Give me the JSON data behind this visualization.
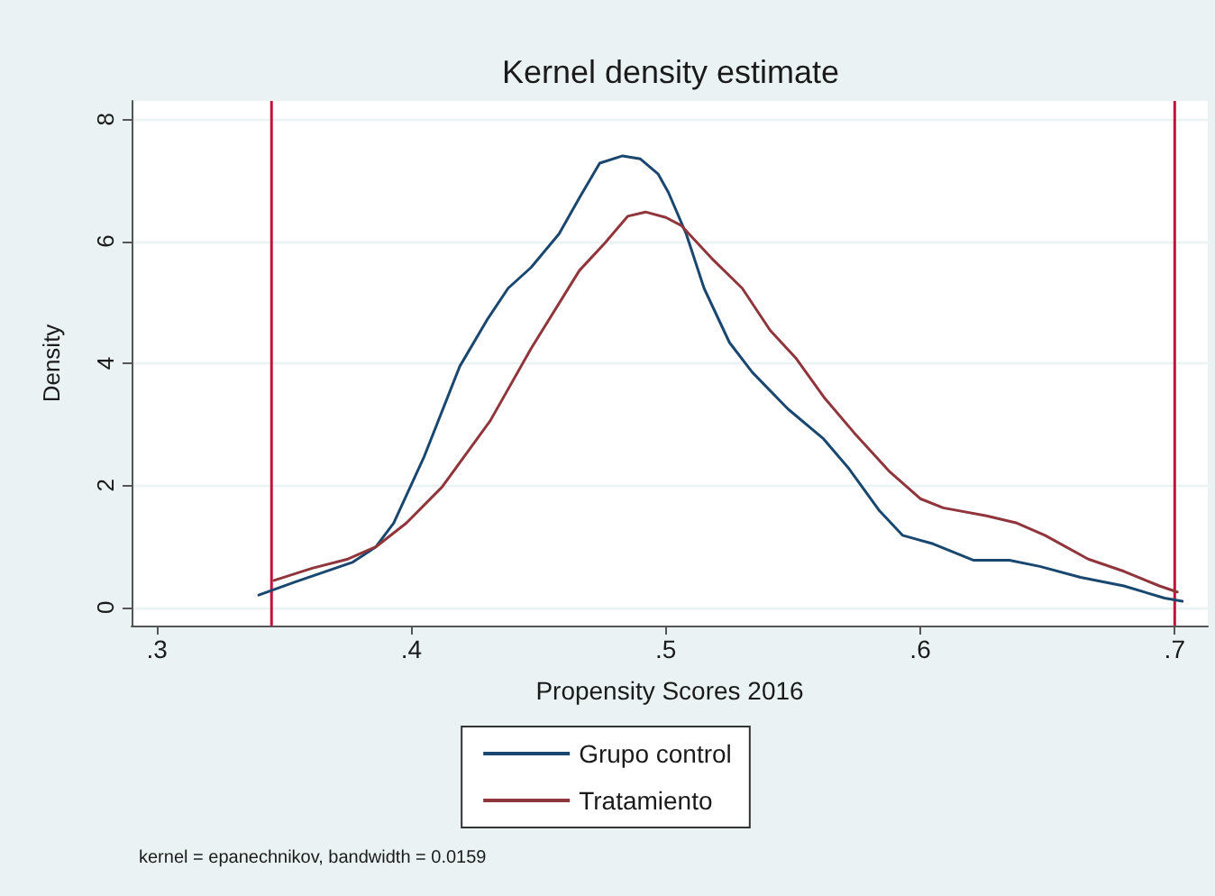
{
  "chart_data": {
    "type": "line",
    "title": "Kernel density estimate",
    "xlabel": "Propensity Scores 2016",
    "ylabel": "Density",
    "annotations": [
      "kernel = epanechnikov, bandwidth = 0.0159"
    ],
    "xlim": [
      0.29,
      0.713
    ],
    "xticks": [
      {
        "value": 0.3,
        "label": ".3"
      },
      {
        "value": 0.4,
        "label": ".4"
      },
      {
        "value": 0.5,
        "label": ".5"
      },
      {
        "value": 0.6,
        "label": ".6"
      },
      {
        "value": 0.7,
        "label": ".7"
      }
    ],
    "ylim": [
      -0.3,
      8.3
    ],
    "yticks": [
      0,
      2,
      4,
      6,
      8
    ],
    "grid": "y",
    "legend": "bottom",
    "ref_lines": [
      {
        "axis": "x",
        "value": 0.345,
        "color": "#c0143c"
      },
      {
        "axis": "x",
        "value": 0.7,
        "color": "#c0143c"
      }
    ],
    "series": [
      {
        "name": "Grupo control",
        "color": "#1a476f",
        "x": [
          0.34,
          0.354,
          0.377,
          0.386,
          0.393,
          0.405,
          0.419,
          0.43,
          0.438,
          0.447,
          0.458,
          0.466,
          0.474,
          0.483,
          0.49,
          0.497,
          0.501,
          0.508,
          0.515,
          0.525,
          0.534,
          0.548,
          0.562,
          0.572,
          0.584,
          0.593,
          0.605,
          0.621,
          0.635,
          0.647,
          0.663,
          0.68,
          0.696,
          0.703
        ],
        "values": [
          0.2,
          0.41,
          0.74,
          0.99,
          1.38,
          2.47,
          3.95,
          4.73,
          5.23,
          5.57,
          6.12,
          6.71,
          7.28,
          7.4,
          7.35,
          7.1,
          6.8,
          6.12,
          5.23,
          4.34,
          3.85,
          3.25,
          2.76,
          2.27,
          1.58,
          1.18,
          1.04,
          0.77,
          0.77,
          0.67,
          0.49,
          0.35,
          0.15,
          0.1
        ]
      },
      {
        "name": "Tratamiento",
        "color": "#90353b",
        "x": [
          0.346,
          0.361,
          0.375,
          0.386,
          0.398,
          0.412,
          0.431,
          0.447,
          0.466,
          0.476,
          0.485,
          0.492,
          0.5,
          0.506,
          0.518,
          0.53,
          0.541,
          0.551,
          0.562,
          0.574,
          0.588,
          0.6,
          0.609,
          0.626,
          0.638,
          0.649,
          0.666,
          0.68,
          0.694,
          0.701
        ],
        "values": [
          0.44,
          0.64,
          0.79,
          0.99,
          1.38,
          1.97,
          3.06,
          4.24,
          5.52,
          5.97,
          6.41,
          6.48,
          6.39,
          6.26,
          5.72,
          5.23,
          4.54,
          4.09,
          3.45,
          2.86,
          2.22,
          1.78,
          1.63,
          1.5,
          1.38,
          1.18,
          0.79,
          0.59,
          0.35,
          0.25
        ]
      }
    ]
  }
}
